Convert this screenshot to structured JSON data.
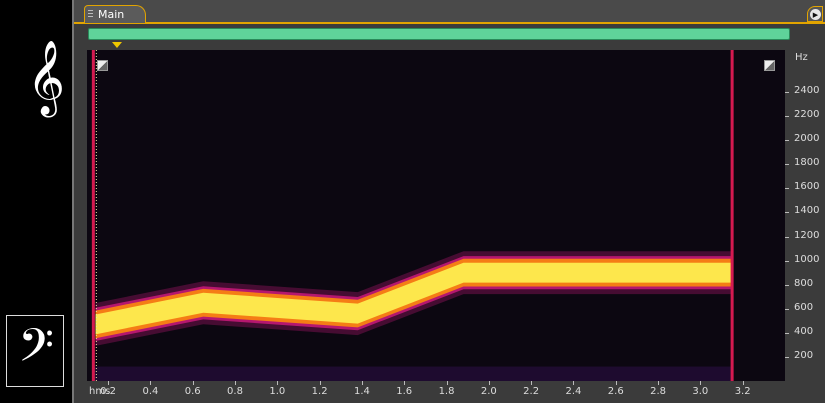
{
  "clefs": {
    "treble": "𝄞",
    "bass": "𝄢"
  },
  "tab": {
    "label": "Main"
  },
  "icons": {
    "play": "▶"
  },
  "colors": {
    "overview_bar": "#5fd39a",
    "tab_accent": "#e2a400",
    "spectrogram_bg": "#0c0711",
    "band_core": "#fde74c",
    "band_mid": "#f57d15",
    "band_edge": "#b5176f",
    "marker_line": "#d41a50"
  },
  "frequency_axis": {
    "unit": "Hz",
    "labels": [
      "2400",
      "2200",
      "2000",
      "1800",
      "1600",
      "1400",
      "1200",
      "1000",
      "800",
      "600",
      "400",
      "200"
    ]
  },
  "time_axis": {
    "unit": "hms",
    "labels": [
      "0.2",
      "0.4",
      "0.6",
      "0.8",
      "1.0",
      "1.2",
      "1.4",
      "1.6",
      "1.8",
      "2.0",
      "2.2",
      "2.4",
      "2.6",
      "2.8",
      "3.0",
      "3.2"
    ]
  },
  "spectrogram": {
    "time_range": [
      0.1,
      3.4
    ],
    "freq_range": [
      0,
      2750
    ],
    "markers_s": [
      0.13,
      3.15
    ],
    "pitch_track": [
      {
        "t": 0.14,
        "f": 470
      },
      {
        "t": 0.65,
        "f": 650
      },
      {
        "t": 1.38,
        "f": 560
      },
      {
        "t": 1.88,
        "f": 900
      },
      {
        "t": 3.15,
        "f": 900
      }
    ],
    "bandwidth_hz": 230
  }
}
